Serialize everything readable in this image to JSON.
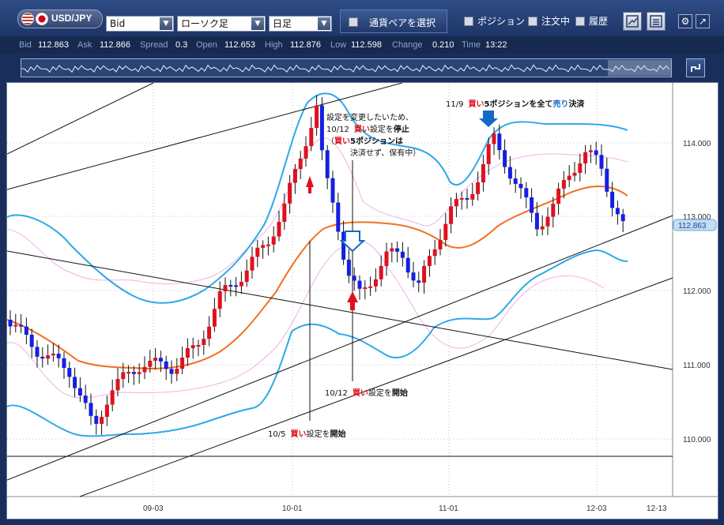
{
  "toolbar": {
    "pair": "USD/JPY",
    "price_type": "Bid",
    "chart_type": "ローソク足",
    "timeframe": "日足",
    "select_pair_button": "通貨ペアを選択",
    "positions_label": "ポジション",
    "orders_label": "注文中",
    "history_label": "履歴"
  },
  "quote": {
    "bid_label": "Bid",
    "bid": "112.863",
    "ask_label": "Ask",
    "ask": "112.866",
    "spread_label": "Spread",
    "spread": "0.3",
    "open_label": "Open",
    "open": "112.653",
    "high_label": "High",
    "high": "112.876",
    "low_label": "Low",
    "low": "112.598",
    "change_label": "Change",
    "change": "0.210",
    "time_label": "Time",
    "time": "13:22"
  },
  "chart": {
    "price_axis": [
      "114.000",
      "113.000",
      "112.000",
      "111.000",
      "110.000"
    ],
    "current_price": "112.863",
    "date_axis": [
      "09-03",
      "10-01",
      "11-01",
      "12-03",
      "12-13"
    ],
    "annotations": {
      "nov9_date": "11/9",
      "nov9_buy": "買い",
      "nov9_mid": "5ポジションを全て",
      "nov9_sell": "売り",
      "nov9_end": "決済",
      "oct12_stop_l1": "設定を変更したいため、",
      "oct12_stop_date": "10/12",
      "oct12_stop_buy": "買い",
      "oct12_stop_mid": "設定を",
      "oct12_stop_end": "停止",
      "oct12_stop_l3_open": "（",
      "oct12_stop_l3_buy": "買い",
      "oct12_stop_l3_rest": "5ポジションは",
      "oct12_stop_l4": "決済せず、保有中）",
      "oct12_start_date": "10/12",
      "oct12_start_buy": "買い",
      "oct12_start_mid": "設定を",
      "oct12_start_end": "開始",
      "oct5_date": "10/5",
      "oct5_buy": "買い",
      "oct5_mid": "設定を",
      "oct5_end": "開始"
    },
    "colors": {
      "bull": "#e0101e",
      "bear": "#1420e0",
      "moving_average": "#f07020",
      "band_outer": "#2ea8e8",
      "band_inner": "#f0b0e8",
      "arrow_buy": "#e0101e",
      "arrow_sell": "#1468c8"
    }
  }
}
